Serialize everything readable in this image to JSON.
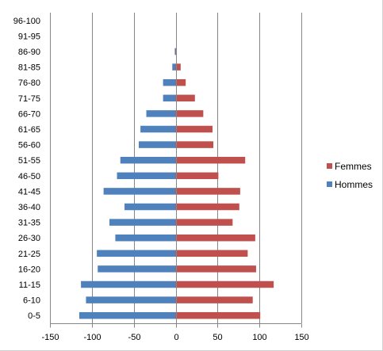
{
  "chart_data": {
    "type": "bar",
    "orientation": "horizontal",
    "categories": [
      "96-100",
      "91-95",
      "86-90",
      "81-85",
      "76-80",
      "71-75",
      "66-70",
      "61-65",
      "56-60",
      "51-55",
      "46-50",
      "41-45",
      "36-40",
      "31-35",
      "26-30",
      "21-25",
      "16-20",
      "11-15",
      "6-10",
      "0-5"
    ],
    "series": [
      {
        "name": "Femmes",
        "color": "#C0504D",
        "values": [
          0,
          0,
          1,
          6,
          12,
          23,
          33,
          44,
          45,
          83,
          51,
          77,
          76,
          68,
          95,
          86,
          96,
          117,
          92,
          101
        ]
      },
      {
        "name": "Hommes",
        "color": "#4F81BD",
        "values": [
          0,
          0,
          -1,
          -4,
          -15,
          -15,
          -35,
          -42,
          -44,
          -66,
          -70,
          -86,
          -61,
          -79,
          -72,
          -94,
          -93,
          -113,
          -107,
          -115
        ]
      }
    ],
    "xlim": [
      -150,
      150
    ],
    "xticks": [
      -150,
      -100,
      -50,
      0,
      50,
      100,
      150
    ],
    "grid": "vertical",
    "legend": "right"
  }
}
